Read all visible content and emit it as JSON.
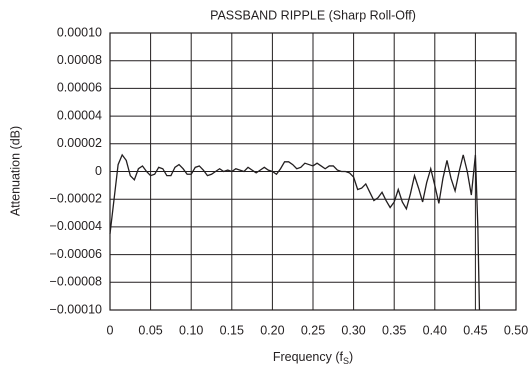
{
  "chart_data": {
    "type": "line",
    "title": "PASSBAND RIPPLE (Sharp Roll-Off)",
    "xlabel": [
      "Frequency (f",
      "S",
      ")"
    ],
    "ylabel": "Attenuation (dB)",
    "xlim": [
      0,
      0.5
    ],
    "ylim": [
      -0.0001,
      0.0001
    ],
    "xticks": [
      0,
      0.05,
      {
        "value": 0.1,
        "label": "0.10"
      },
      0.15,
      {
        "value": 0.2,
        "label": "0.20"
      },
      0.25,
      {
        "value": 0.3,
        "label": "0.30"
      },
      0.35,
      {
        "value": 0.4,
        "label": "0.40"
      },
      0.45,
      {
        "value": 0.5,
        "label": "0.50"
      }
    ],
    "yticks": [
      {
        "value": 0.0001,
        "label": "0.00010"
      },
      {
        "value": 8e-05,
        "label": "0.00008"
      },
      {
        "value": 6e-05,
        "label": "0.00006"
      },
      {
        "value": 4e-05,
        "label": "0.00004"
      },
      {
        "value": 2e-05,
        "label": "0.00002"
      },
      0,
      {
        "value": -2e-05,
        "label": "−0.00002"
      },
      {
        "value": -4e-05,
        "label": "−0.00004"
      },
      {
        "value": -6e-05,
        "label": "−0.00006"
      },
      {
        "value": -8e-05,
        "label": "−0.00008"
      },
      {
        "value": -0.0001,
        "label": "−0.00010"
      }
    ],
    "grid": true,
    "x": [
      0,
      0.005,
      0.01,
      0.015,
      0.02,
      0.025,
      0.03,
      0.035,
      0.04,
      0.045,
      0.05,
      0.055,
      0.06,
      0.065,
      0.07,
      0.075,
      0.08,
      0.085,
      0.09,
      0.095,
      0.1,
      0.105,
      0.11,
      0.115,
      0.12,
      0.125,
      0.13,
      0.135,
      0.14,
      0.145,
      0.15,
      0.155,
      0.16,
      0.165,
      0.17,
      0.175,
      0.18,
      0.185,
      0.19,
      0.195,
      0.2,
      0.205,
      0.21,
      0.215,
      0.22,
      0.225,
      0.23,
      0.235,
      0.24,
      0.245,
      0.25,
      0.255,
      0.26,
      0.265,
      0.27,
      0.275,
      0.28,
      0.285,
      0.29,
      0.295,
      0.3,
      0.305,
      0.31,
      0.315,
      0.32,
      0.325,
      0.33,
      0.335,
      0.34,
      0.345,
      0.35,
      0.355,
      0.36,
      0.365,
      0.37,
      0.375,
      0.38,
      0.385,
      0.39,
      0.395,
      0.4,
      0.405,
      0.41,
      0.415,
      0.42,
      0.425,
      0.43,
      0.435,
      0.44,
      0.445,
      0.45,
      0.453,
      0.455
    ],
    "series": [
      {
        "color": "#231f20",
        "values": [
          -4.5e-05,
          -2e-05,
          5e-06,
          1.2e-05,
          8e-06,
          -3e-06,
          -6e-06,
          2e-06,
          4e-06,
          0,
          -3e-06,
          -2e-06,
          3e-06,
          2e-06,
          -3e-06,
          -3e-06,
          3e-06,
          5e-06,
          2e-06,
          -2e-06,
          -2e-06,
          3e-06,
          4e-06,
          1e-06,
          -3e-06,
          -2e-06,
          0,
          2e-06,
          0,
          1e-06,
          0,
          2e-06,
          1e-06,
          0,
          3e-06,
          1e-06,
          -1e-06,
          1e-06,
          3e-06,
          1e-06,
          0,
          -2e-06,
          2e-06,
          7e-06,
          7e-06,
          5e-06,
          2e-06,
          3e-06,
          6e-06,
          5e-06,
          4e-06,
          6e-06,
          4e-06,
          2e-06,
          4e-06,
          4e-06,
          1e-06,
          0,
          0,
          -1e-06,
          -4e-06,
          -1.3e-05,
          -1.2e-05,
          -9e-06,
          -1.5e-05,
          -2.1e-05,
          -1.9e-05,
          -1.5e-05,
          -2.1e-05,
          -2.6e-05,
          -2.2e-05,
          -1.3e-05,
          -2.2e-05,
          -2.7e-05,
          -1.6e-05,
          -3e-06,
          -1.2e-05,
          -2.2e-05,
          -8e-06,
          2e-06,
          -1e-05,
          -2.3e-05,
          -5e-06,
          8e-06,
          -5e-06,
          -1.4e-05,
          0,
          1.2e-05,
          0,
          -1.7e-05,
          1.2e-05,
          -4e-05,
          -0.0001
        ]
      }
    ]
  }
}
